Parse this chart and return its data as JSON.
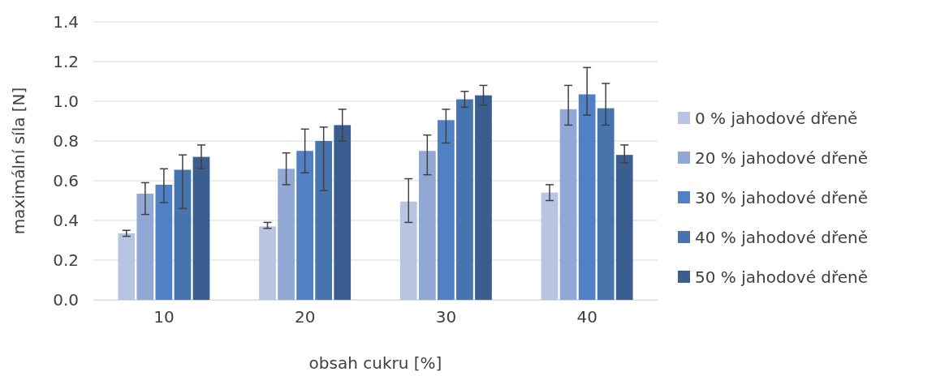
{
  "chart_data": {
    "type": "bar",
    "xlabel": "obsah cukru [%]",
    "ylabel": "maximální síla [N]",
    "categories": [
      "10",
      "20",
      "30",
      "40"
    ],
    "series": [
      {
        "name": "0 % jahodové dřeně",
        "color": "#b7c5e2",
        "values": [
          0.335,
          0.37,
          0.495,
          0.54
        ],
        "errors": [
          [
            0.32,
            0.35
          ],
          [
            0.36,
            0.39
          ],
          [
            0.39,
            0.61
          ],
          [
            0.5,
            0.58
          ]
        ]
      },
      {
        "name": "20 % jahodové dřeně",
        "color": "#91a8d4",
        "values": [
          0.535,
          0.66,
          0.75,
          0.96
        ],
        "errors": [
          [
            0.43,
            0.59
          ],
          [
            0.58,
            0.74
          ],
          [
            0.63,
            0.83
          ],
          [
            0.88,
            1.08
          ]
        ]
      },
      {
        "name": "30 % jahodové dřeně",
        "color": "#4f81c4",
        "values": [
          0.58,
          0.75,
          0.905,
          1.035
        ],
        "errors": [
          [
            0.49,
            0.66
          ],
          [
            0.64,
            0.86
          ],
          [
            0.79,
            0.96
          ],
          [
            0.93,
            1.17
          ]
        ]
      },
      {
        "name": "40 % jahodové dřeně",
        "color": "#4674ad",
        "values": [
          0.655,
          0.8,
          1.01,
          0.965
        ],
        "errors": [
          [
            0.46,
            0.73
          ],
          [
            0.55,
            0.87
          ],
          [
            0.97,
            1.05
          ],
          [
            0.88,
            1.09
          ]
        ]
      },
      {
        "name": "50 % jahodové dřeně",
        "color": "#3b5e91",
        "values": [
          0.72,
          0.88,
          1.03,
          0.73
        ],
        "errors": [
          [
            0.66,
            0.78
          ],
          [
            0.8,
            0.96
          ],
          [
            0.98,
            1.08
          ],
          [
            0.69,
            0.78
          ]
        ]
      }
    ],
    "ylim": [
      0,
      1.4
    ],
    "yticks": [
      {
        "value": 0,
        "label": "0.0"
      },
      {
        "value": 0.2,
        "label": "0.2"
      },
      {
        "value": 0.4,
        "label": "0.4"
      },
      {
        "value": 0.6,
        "label": "0.6"
      },
      {
        "value": 0.8,
        "label": "0.8"
      },
      {
        "value": 1,
        "label": "1.0"
      },
      {
        "value": 1.2,
        "label": "1.2"
      },
      {
        "value": 1.4,
        "label": "1.4"
      }
    ],
    "grid": "y",
    "legend": "right"
  }
}
